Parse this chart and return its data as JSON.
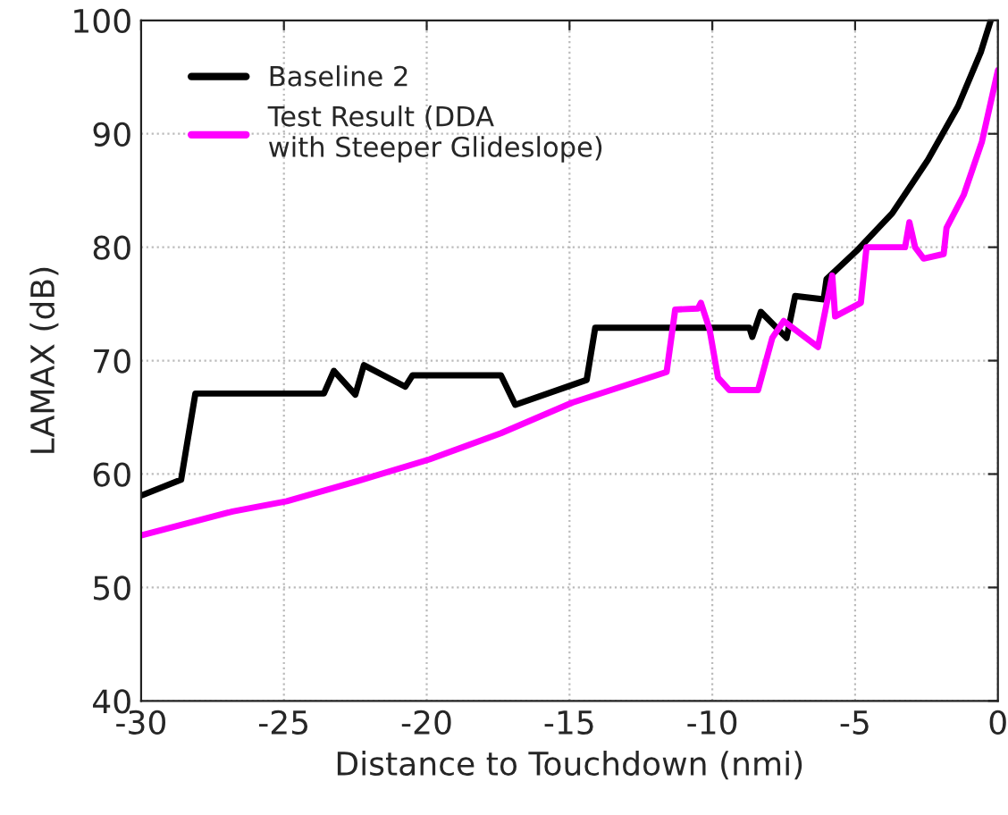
{
  "chart_data": {
    "type": "line",
    "xlabel": "Distance to Touchdown (nmi)",
    "ylabel": "LAMAX (dB)",
    "xlim": [
      -30,
      0
    ],
    "xticks": [
      -30,
      -25,
      -20,
      -15,
      -10,
      -5,
      0
    ],
    "ylim": [
      40,
      100
    ],
    "yticks": [
      40,
      50,
      60,
      70,
      80,
      90,
      100
    ],
    "grid": true,
    "legend": "top left",
    "line_style": "solid",
    "series": [
      {
        "name": "Baseline 2",
        "color": "#000000",
        "x": [
          -30,
          -28.6,
          -28.1,
          -23.6,
          -23.25,
          -22.5,
          -22.2,
          -20.75,
          -20.5,
          -17.4,
          -16.9,
          -14.4,
          -14.1,
          -8.7,
          -8.6,
          -8.3,
          -7.4,
          -7.1,
          -6.1,
          -6.0,
          -4.9,
          -3.7,
          -2.45,
          -1.4,
          -0.6,
          -0.25
        ],
        "values": [
          58.1,
          59.5,
          67.1,
          67.1,
          69.1,
          67.0,
          69.6,
          67.7,
          68.7,
          68.7,
          66.1,
          68.3,
          72.9,
          72.9,
          72.1,
          74.3,
          72.0,
          75.7,
          75.4,
          77.2,
          79.8,
          83.0,
          87.7,
          92.4,
          97.2,
          100
        ]
      },
      {
        "name": "Test Result (DDA\nwith Steeper Glideslope)",
        "color": "#ff00ff",
        "x": [
          -30,
          -26.8,
          -24.9,
          -22.4,
          -19.9,
          -17.4,
          -14.9,
          -11.6,
          -11.3,
          -10.5,
          -10.4,
          -10.1,
          -9.8,
          -9.4,
          -8.4,
          -7.9,
          -7.5,
          -6.3,
          -5.8,
          -5.7,
          -4.8,
          -4.6,
          -3.25,
          -3.1,
          -2.9,
          -2.6,
          -1.9,
          -1.8,
          -1.2,
          -0.56,
          0
        ],
        "values": [
          54.6,
          56.7,
          57.6,
          59.4,
          61.3,
          63.6,
          66.3,
          69.0,
          74.5,
          74.6,
          75.1,
          72.8,
          68.5,
          67.4,
          67.4,
          72.0,
          73.5,
          71.2,
          77.5,
          73.9,
          75.1,
          80.0,
          80.0,
          82.2,
          80.0,
          79.0,
          79.4,
          81.7,
          84.6,
          89.3,
          95.6
        ]
      }
    ]
  }
}
